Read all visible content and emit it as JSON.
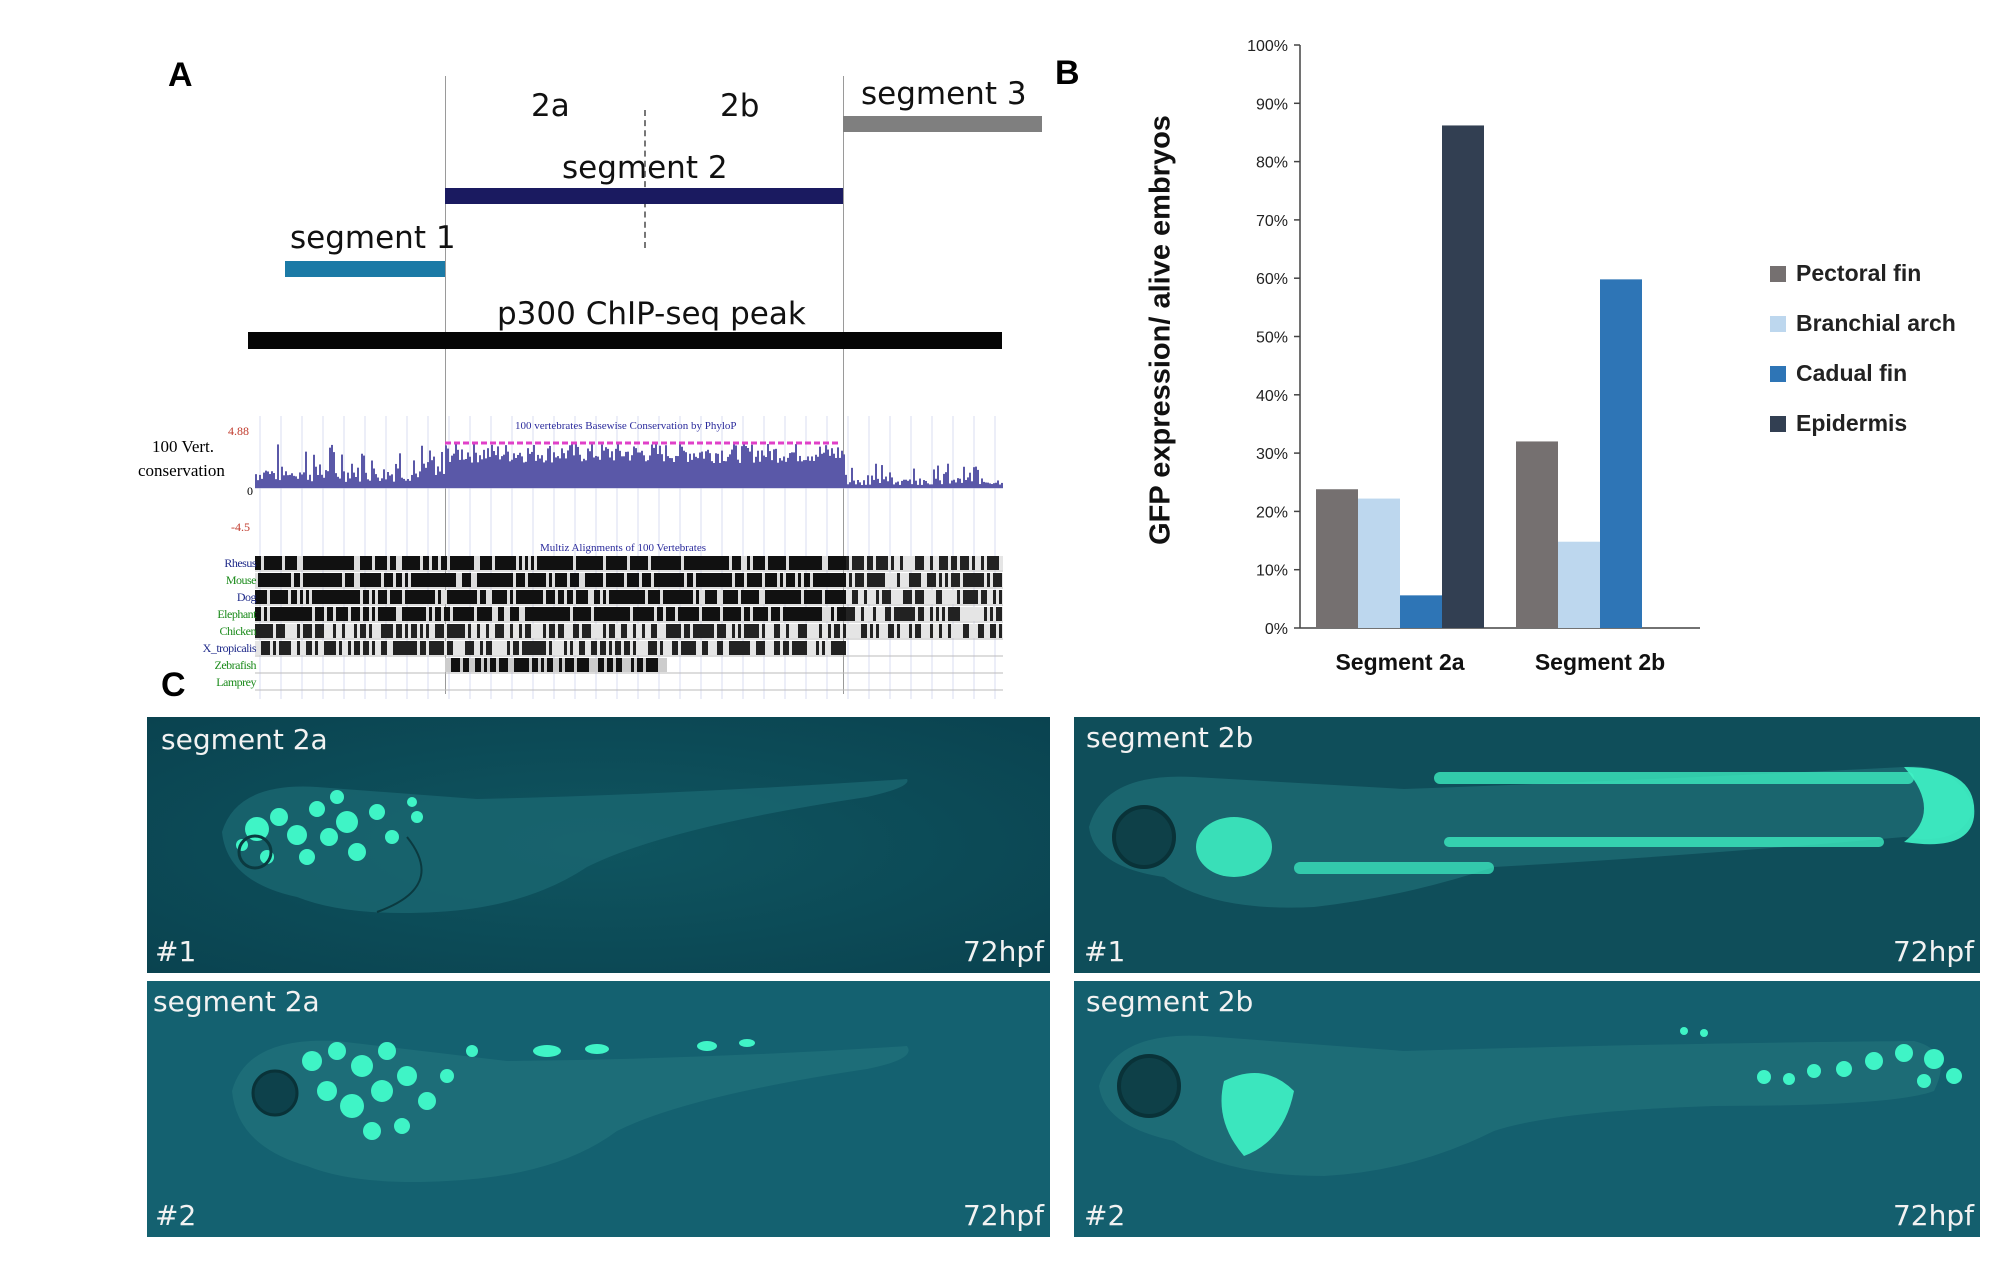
{
  "panel_a": {
    "letter": "A",
    "segment_2a_label": "2a",
    "segment_2b_label": "2b",
    "segment_3_label": "segment 3",
    "segment_2_label": "segment 2",
    "segment_1_label": "segment 1",
    "p300_label": "p300 ChIP-seq peak",
    "cons_label_line1": "100 Vert.",
    "cons_label_line2": "conservation",
    "axis_top": "4.88",
    "axis_zero": "0",
    "axis_bottom": "-4.5",
    "track_title_cons": "100 vertebrates Basewise Conservation by PhyloP",
    "track_title_align": "Multiz Alignments of 100 Vertebrates",
    "species": [
      "Rhesus",
      "Mouse",
      "Dog",
      "Elephant",
      "Chicken",
      "X_tropicalis",
      "Zebrafish",
      "Lamprey"
    ],
    "colors": {
      "segment1": "#1b7aa6",
      "segment2": "#1a1a60",
      "segment3": "#7f7f7f",
      "p300": "#050505",
      "conservation": "#5a58a8"
    }
  },
  "panel_b": {
    "letter": "B",
    "chart_data": {
      "type": "bar",
      "categories": [
        "Segment 2a",
        "Segment 2b"
      ],
      "series": [
        {
          "name": "Pectoral fin",
          "color": "#757070",
          "values": [
            23.8,
            32.0
          ]
        },
        {
          "name": "Branchial arch",
          "color": "#bdd7ee",
          "values": [
            22.2,
            14.8
          ]
        },
        {
          "name": "Cadual fin",
          "color": "#2e75b6",
          "values": [
            5.6,
            59.8
          ]
        },
        {
          "name": "Epidermis",
          "color": "#323f52",
          "values": [
            86.2,
            null
          ]
        }
      ],
      "ylabel": "GFP expression/ alive embryos",
      "ylim": [
        0,
        100
      ],
      "yticks": [
        "0%",
        "10%",
        "20%",
        "30%",
        "40%",
        "50%",
        "60%",
        "70%",
        "80%",
        "90%",
        "100%"
      ],
      "legend_position": "right",
      "grid": false
    }
  },
  "panel_c": {
    "letter": "C",
    "images": [
      {
        "title": "segment 2a",
        "number": "#1",
        "stage": "72hpf"
      },
      {
        "title": "segment 2b",
        "number": "#1",
        "stage": "72hpf"
      },
      {
        "title": "segment 2a",
        "number": "#2",
        "stage": "72hpf"
      },
      {
        "title": "segment 2b",
        "number": "#2",
        "stage": "72hpf"
      }
    ],
    "colors": {
      "background": "#0d4c57",
      "gfp": "#39f2c4"
    }
  }
}
